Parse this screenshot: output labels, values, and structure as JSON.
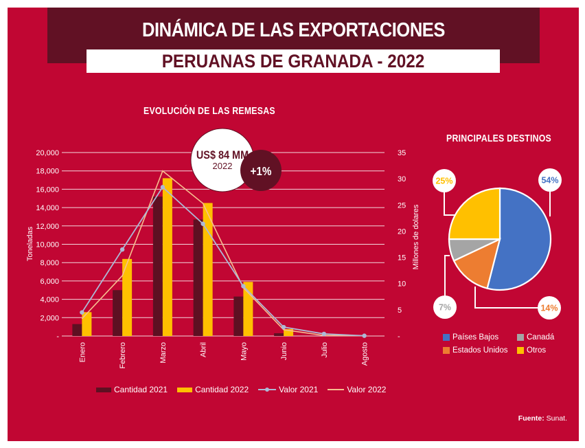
{
  "header": {
    "title_line1": "DINÁMICA DE LAS EXPORTACIONES",
    "title_line2": "PERUANAS DE GRANADA - 2022"
  },
  "colors": {
    "background": "#c10633",
    "dark_red": "#611124",
    "white": "#ffffff",
    "cantidad_2021": "#5e1022",
    "cantidad_2022": "#ffc000",
    "valor_2021": "#adb9d6",
    "valor_2022": "#f7bf8f",
    "paises_bajos": "#4472c4",
    "estados_unidos": "#ed7d31",
    "canada": "#a5a5a5",
    "otros": "#ffc000"
  },
  "badge": {
    "amount": "US$ 84 MM",
    "year": "2022",
    "change": "+1%"
  },
  "source": {
    "label": "Fuente:",
    "value": "Sunat."
  },
  "chart_data": [
    {
      "type": "bar",
      "title": "EVOLUCIÓN DE LAS REMESAS",
      "xlabel": "",
      "ylabel": "Toneladas",
      "y2label": "Millones de dolares",
      "categories": [
        "Enero",
        "Febrero",
        "Marzo",
        "Abril",
        "Mayo",
        "Junio",
        "Julio",
        "Agosto"
      ],
      "ylim": [
        0,
        20000
      ],
      "y_ticks": [
        "-",
        "2,000",
        "4,000",
        "6,000",
        "8,000",
        "10,000",
        "12,000",
        "14,000",
        "16,000",
        "18,000",
        "20,000"
      ],
      "y2lim": [
        0,
        35
      ],
      "y2_ticks": [
        "-",
        "5",
        "10",
        "15",
        "20",
        "25",
        "30",
        "35"
      ],
      "grid": true,
      "legend_position": "bottom",
      "series": [
        {
          "name": "Cantidad 2021",
          "kind": "bar",
          "axis": "left",
          "values": [
            1300,
            5000,
            15200,
            12700,
            4300,
            300,
            0,
            0
          ]
        },
        {
          "name": "Cantidad 2022",
          "kind": "bar",
          "axis": "left",
          "values": [
            2600,
            8400,
            17200,
            14500,
            5900,
            750,
            0,
            0
          ]
        },
        {
          "name": "Valor 2021",
          "kind": "line-marker",
          "axis": "right",
          "values": [
            4.5,
            16.5,
            28.4,
            21.4,
            9.5,
            1.7,
            0.4,
            0.05
          ]
        },
        {
          "name": "Valor 2022",
          "kind": "line",
          "axis": "right",
          "values": [
            3.3,
            11.5,
            31.5,
            25.3,
            9.2,
            1.2,
            0.1,
            0.05
          ]
        }
      ]
    },
    {
      "type": "pie",
      "title": "PRINCIPALES DESTINOS",
      "legend_position": "bottom",
      "categories": [
        "Países Bajos",
        "Estados Unidos",
        "Canadá",
        "Otros"
      ],
      "values": [
        54,
        14,
        7,
        25
      ],
      "labels": [
        "54%",
        "14%",
        "7%",
        "25%"
      ]
    }
  ]
}
